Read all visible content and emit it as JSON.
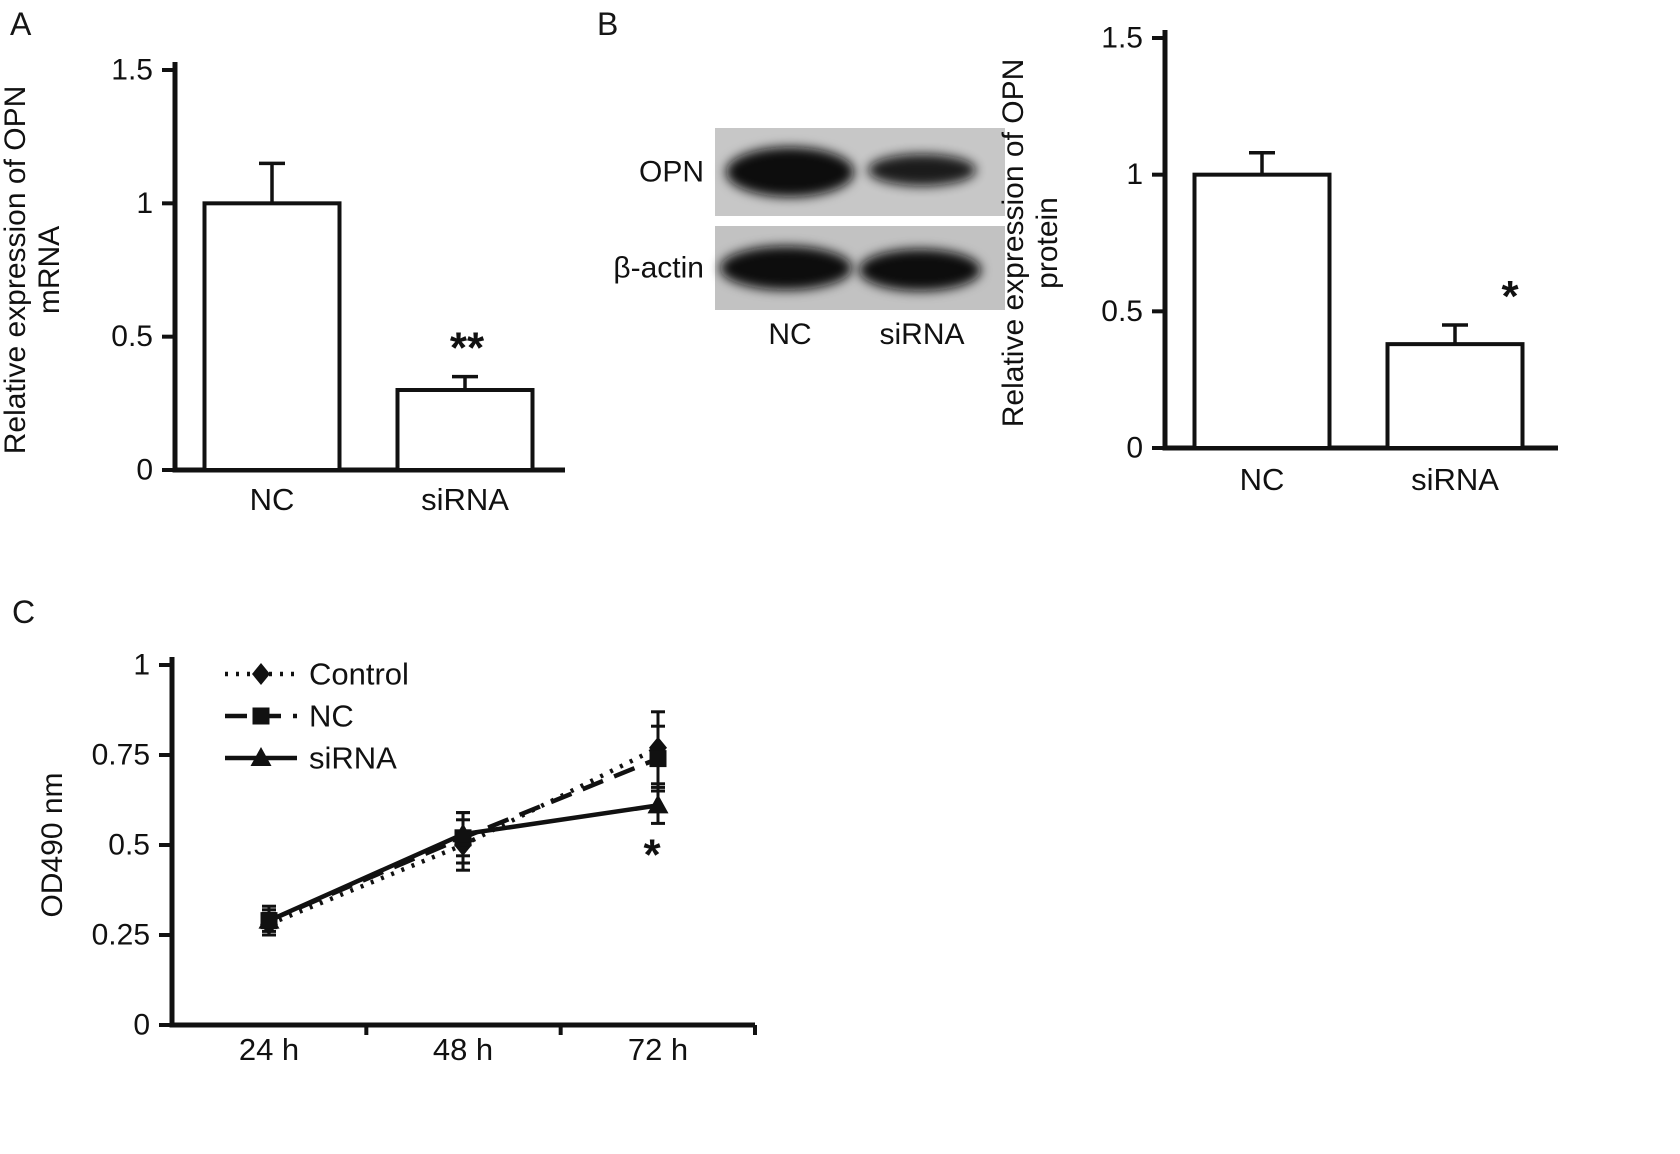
{
  "figure": {
    "panels": [
      {
        "label": "A"
      },
      {
        "label": "B"
      },
      {
        "label": "C"
      }
    ]
  },
  "blot": {
    "rows": [
      {
        "label": "OPN",
        "bands": [
          {
            "lane": "NC",
            "intensity": "strong"
          },
          {
            "lane": "siRNA",
            "intensity": "medium"
          }
        ]
      },
      {
        "label": "β-actin",
        "bands": [
          {
            "lane": "NC",
            "intensity": "strong"
          },
          {
            "lane": "siRNA",
            "intensity": "strong"
          }
        ]
      }
    ],
    "lanes": [
      "NC",
      "siRNA"
    ]
  },
  "chart_data": [
    {
      "id": "opn-mrna-bar",
      "panel": "A",
      "type": "bar",
      "title": "",
      "xlabel": "",
      "ylabel": "Relative expression of OPN mRNA",
      "ylabel_lines": [
        "Relative expression of OPN",
        "mRNA"
      ],
      "categories": [
        "NC",
        "siRNA"
      ],
      "values": [
        1.0,
        0.3
      ],
      "errors": [
        0.15,
        0.05
      ],
      "annotations": [
        {
          "category": "siRNA",
          "text": "**"
        }
      ],
      "ylim": [
        0,
        1.5
      ],
      "yticks": [
        0,
        0.5,
        1,
        1.5
      ],
      "ytick_labels": [
        "0",
        "0.5",
        "1",
        "1.5"
      ],
      "bar_fill": "#ffffff",
      "bar_stroke": "#111111",
      "grid": false
    },
    {
      "id": "opn-protein-bar",
      "panel": "B",
      "type": "bar",
      "title": "",
      "xlabel": "",
      "ylabel": "Relative expression of OPN protein",
      "ylabel_lines": [
        "Relative expression of OPN",
        "protein"
      ],
      "categories": [
        "NC",
        "siRNA"
      ],
      "values": [
        1.0,
        0.38
      ],
      "errors": [
        0.08,
        0.07
      ],
      "annotations": [
        {
          "category": "siRNA",
          "text": "*"
        }
      ],
      "ylim": [
        0,
        1.5
      ],
      "yticks": [
        0,
        0.5,
        1,
        1.5
      ],
      "ytick_labels": [
        "0",
        "0.5",
        "1",
        "1.5"
      ],
      "bar_fill": "#ffffff",
      "bar_stroke": "#111111",
      "grid": false
    },
    {
      "id": "od490-proliferation-line",
      "panel": "C",
      "type": "line",
      "title": "",
      "xlabel": "",
      "ylabel": "OD490 nm",
      "ylabel_lines": [
        "OD490 nm"
      ],
      "categories": [
        "24 h",
        "48 h",
        "72 h"
      ],
      "series": [
        {
          "name": "Control",
          "values": [
            0.28,
            0.5,
            0.77
          ],
          "errors": [
            0.03,
            0.07,
            0.1
          ],
          "line_style": "dotted",
          "marker": "diamond",
          "color": "#111111"
        },
        {
          "name": "NC",
          "values": [
            0.29,
            0.52,
            0.74
          ],
          "errors": [
            0.04,
            0.07,
            0.09
          ],
          "line_style": "dashed",
          "marker": "square",
          "color": "#111111"
        },
        {
          "name": "siRNA",
          "values": [
            0.29,
            0.53,
            0.61
          ],
          "errors": [
            0.03,
            0.06,
            0.05
          ],
          "line_style": "solid",
          "marker": "triangle",
          "color": "#111111"
        }
      ],
      "annotations": [
        {
          "series": "siRNA",
          "category": "72 h",
          "text": "*",
          "position": "below"
        }
      ],
      "ylim": [
        0,
        1
      ],
      "yticks": [
        0,
        0.25,
        0.5,
        0.75,
        1
      ],
      "ytick_labels": [
        "0",
        "0.25",
        "0.5",
        "0.75",
        "1"
      ],
      "legend_position": "top-left",
      "grid": false
    }
  ]
}
